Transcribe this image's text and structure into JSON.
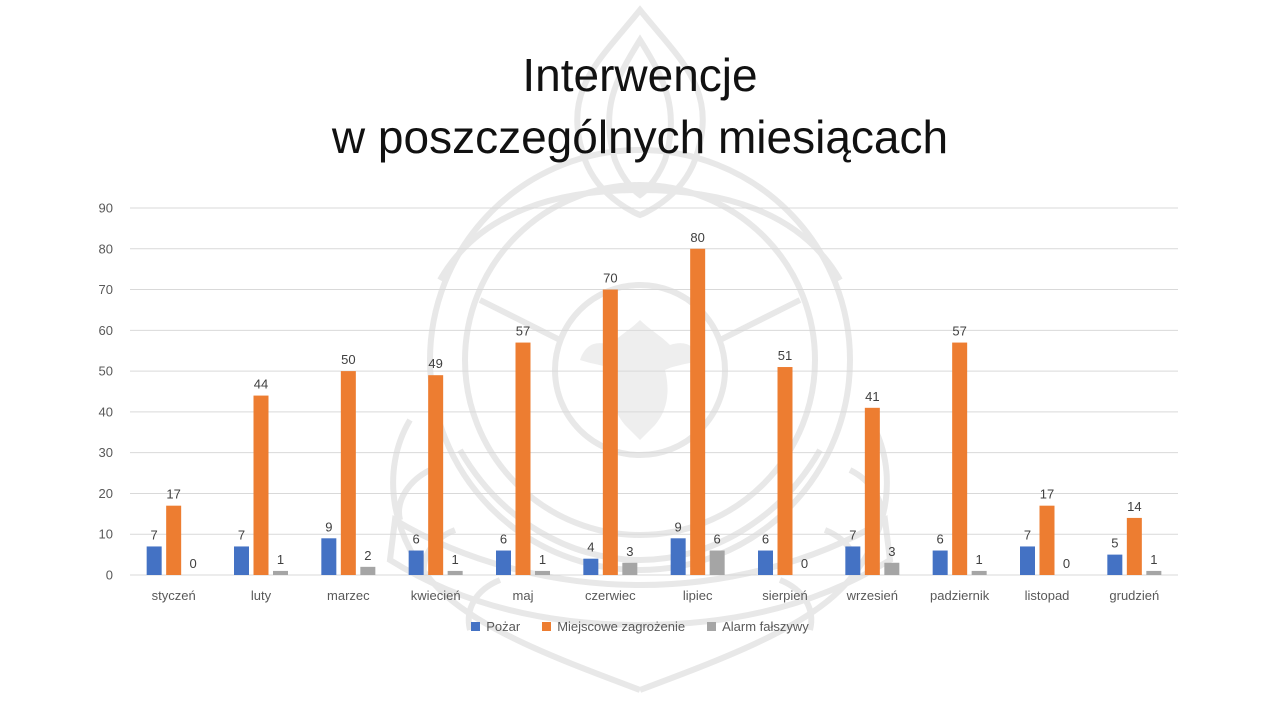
{
  "title": {
    "line1": "Interwencje",
    "line2": "w poszczególnych miesiącach"
  },
  "colors": {
    "grid": "#d9d9d9",
    "watermark": "#e6e6e6"
  },
  "chart_data": {
    "type": "bar",
    "title": "Interwencje w poszczególnych miesiącach",
    "xlabel": "",
    "ylabel": "",
    "ylim": [
      0,
      90
    ],
    "yticks": [
      0,
      10,
      20,
      30,
      40,
      50,
      60,
      70,
      80,
      90
    ],
    "grid": true,
    "legend_position": "bottom",
    "categories": [
      "styczeń",
      "luty",
      "marzec",
      "kwiecień",
      "maj",
      "czerwiec",
      "lipiec",
      "sierpień",
      "wrzesień",
      "padziernik",
      "listopad",
      "grudzień"
    ],
    "series": [
      {
        "name": "Pożar",
        "color": "#4472c4",
        "values": [
          7,
          7,
          9,
          6,
          6,
          4,
          9,
          6,
          7,
          6,
          7,
          5
        ]
      },
      {
        "name": "Miejscowe zagrożenie",
        "color": "#ed7d31",
        "values": [
          17,
          44,
          50,
          49,
          57,
          70,
          80,
          51,
          41,
          57,
          17,
          14
        ]
      },
      {
        "name": "Alarm fałszywy",
        "color": "#a5a5a5",
        "values": [
          0,
          1,
          2,
          1,
          1,
          3,
          6,
          0,
          3,
          1,
          0,
          1
        ]
      }
    ]
  }
}
